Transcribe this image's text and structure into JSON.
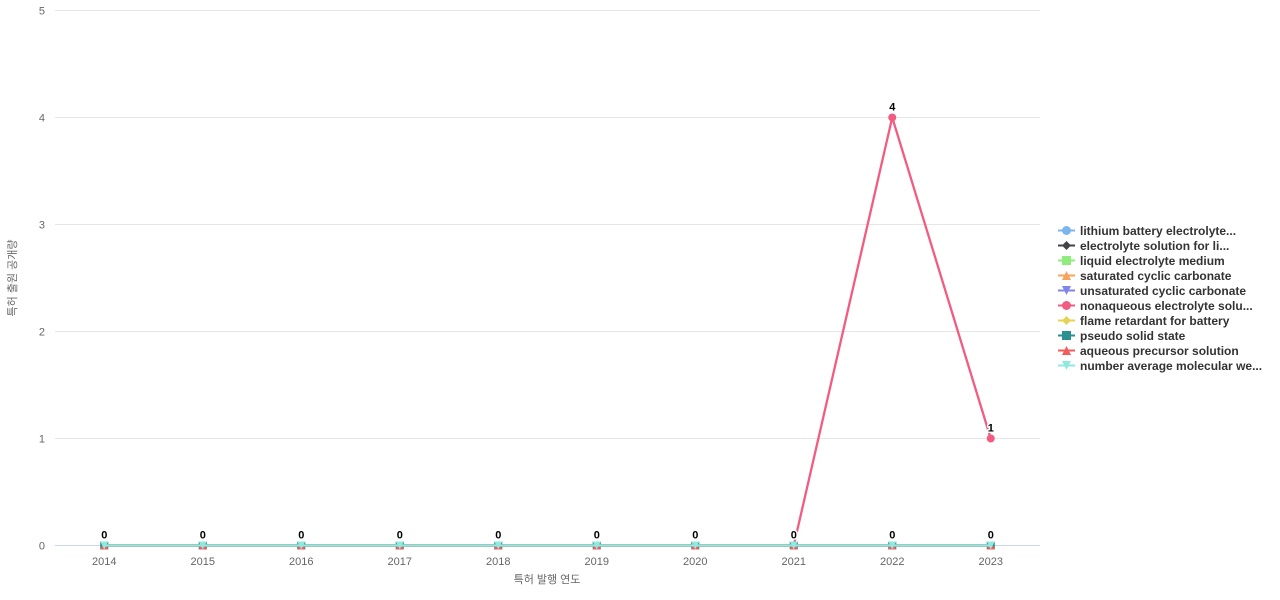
{
  "chart_data": {
    "type": "line",
    "title": "",
    "xlabel": "특허 발행 연도",
    "ylabel": "특허 출원 공개량",
    "categories": [
      "2014",
      "2015",
      "2016",
      "2017",
      "2018",
      "2019",
      "2020",
      "2021",
      "2022",
      "2023"
    ],
    "ylim": [
      0,
      5
    ],
    "yticks": [
      0,
      1,
      2,
      3,
      4,
      5
    ],
    "grid": "horizontal",
    "legend_position": "right-middle",
    "series": [
      {
        "name": "lithium battery electrolyte...",
        "color": "#7cb5ec",
        "marker": "circle",
        "values": [
          0,
          0,
          0,
          0,
          0,
          0,
          0,
          0,
          0,
          0
        ]
      },
      {
        "name": "electrolyte solution for li...",
        "color": "#434348",
        "marker": "diamond",
        "values": [
          0,
          0,
          0,
          0,
          0,
          0,
          0,
          0,
          0,
          0
        ]
      },
      {
        "name": "liquid electrolyte medium",
        "color": "#90ed7d",
        "marker": "square",
        "values": [
          0,
          0,
          0,
          0,
          0,
          0,
          0,
          0,
          0,
          0
        ]
      },
      {
        "name": "saturated cyclic carbonate",
        "color": "#f7a35c",
        "marker": "triangle",
        "values": [
          0,
          0,
          0,
          0,
          0,
          0,
          0,
          0,
          0,
          0
        ]
      },
      {
        "name": "unsaturated cyclic carbonate",
        "color": "#8085e9",
        "marker": "triangle-down",
        "values": [
          0,
          0,
          0,
          0,
          0,
          0,
          0,
          0,
          0,
          0
        ]
      },
      {
        "name": "nonaqueous electrolyte solu...",
        "color": "#f15c80",
        "marker": "circle",
        "values": [
          0,
          0,
          0,
          0,
          0,
          0,
          0,
          0,
          4,
          1
        ]
      },
      {
        "name": "flame retardant for battery",
        "color": "#e4d354",
        "marker": "diamond",
        "values": [
          0,
          0,
          0,
          0,
          0,
          0,
          0,
          0,
          0,
          0
        ]
      },
      {
        "name": "pseudo solid state",
        "color": "#2b908f",
        "marker": "square",
        "values": [
          0,
          0,
          0,
          0,
          0,
          0,
          0,
          0,
          0,
          0
        ]
      },
      {
        "name": "aqueous precursor solution",
        "color": "#f45b5b",
        "marker": "triangle",
        "values": [
          0,
          0,
          0,
          0,
          0,
          0,
          0,
          0,
          0,
          0
        ]
      },
      {
        "name": "number average molecular we...",
        "color": "#91e8e1",
        "marker": "triangle-down",
        "values": [
          0,
          0,
          0,
          0,
          0,
          0,
          0,
          0,
          0,
          0
        ]
      }
    ],
    "data_labels": [
      {
        "x_index": 0,
        "value": 0,
        "text": "0"
      },
      {
        "x_index": 1,
        "value": 0,
        "text": "0"
      },
      {
        "x_index": 2,
        "value": 0,
        "text": "0"
      },
      {
        "x_index": 3,
        "value": 0,
        "text": "0"
      },
      {
        "x_index": 4,
        "value": 0,
        "text": "0"
      },
      {
        "x_index": 5,
        "value": 0,
        "text": "0"
      },
      {
        "x_index": 6,
        "value": 0,
        "text": "0"
      },
      {
        "x_index": 7,
        "value": 0,
        "text": "0"
      },
      {
        "x_index": 8,
        "value": 0,
        "text": "0"
      },
      {
        "x_index": 8,
        "value": 4,
        "text": "4"
      },
      {
        "x_index": 9,
        "value": 0,
        "text": "0"
      },
      {
        "x_index": 9,
        "value": 1,
        "text": "1"
      }
    ],
    "colors": {
      "grid_line": "#e6e6e6",
      "axis_line": "#ccd6eb",
      "tick_label": "#666666",
      "axis_title": "#666666",
      "legend_text": "#333333",
      "data_label": "#000000"
    }
  }
}
